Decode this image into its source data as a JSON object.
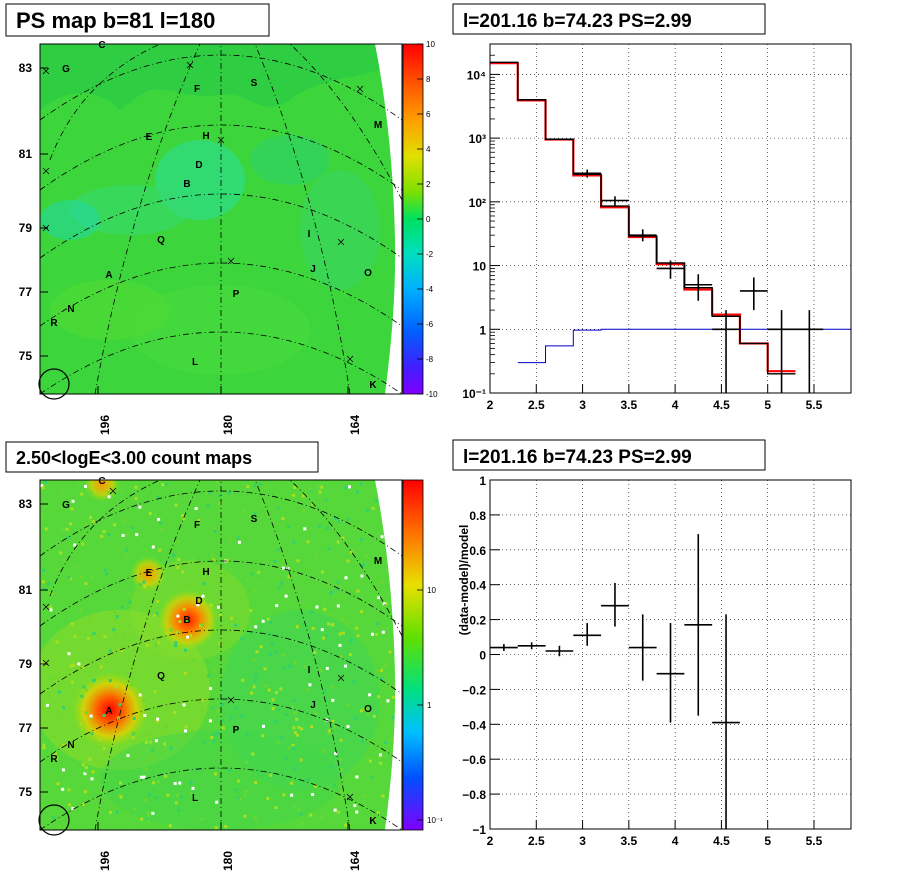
{
  "panels": {
    "ps_map": {
      "title": "PS map b=81 l=180",
      "ytick_labels": [
        "83",
        "81",
        "79",
        "77",
        "75"
      ],
      "xtick_labels": [
        "196",
        "180",
        "164"
      ],
      "colorbar_labels": [
        "10",
        "8",
        "6",
        "4",
        "2",
        "0",
        "-2",
        "-4",
        "-6",
        "-8",
        "-10"
      ],
      "source_labels": [
        "C",
        "G",
        "F",
        "S",
        "M",
        "E",
        "H",
        "D",
        "B",
        "Q",
        "I",
        "A",
        "J",
        "O",
        "P",
        "N",
        "R",
        "L",
        "K"
      ]
    },
    "count_map": {
      "title": "2.50<logE<3.00 count maps",
      "ytick_labels": [
        "83",
        "81",
        "79",
        "77",
        "75"
      ],
      "xtick_labels": [
        "196",
        "180",
        "164"
      ],
      "colorbar_labels": [
        "10",
        "1",
        "10⁻¹"
      ],
      "source_labels": [
        "C",
        "G",
        "F",
        "S",
        "M",
        "E",
        "H",
        "D",
        "B",
        "Q",
        "I",
        "A",
        "J",
        "O",
        "P",
        "N",
        "R",
        "L",
        "K"
      ]
    },
    "spectrum": {
      "title": "l=201.16 b=74.23 PS=2.99"
    },
    "ratio": {
      "title": "l=201.16 b=74.23 PS=2.99"
    }
  },
  "chart_data": [
    {
      "type": "heatmap",
      "title": "PS map b=81 l=180",
      "ylabel_ticks": [
        83,
        81,
        79,
        77,
        75
      ],
      "xlabel_ticks": [
        196,
        180,
        164
      ],
      "zlim": [
        -10,
        10
      ],
      "colorbar_ticks": [
        10,
        8,
        6,
        4,
        2,
        0,
        -2,
        -4,
        -6,
        -8,
        -10
      ],
      "colors": {
        "low": "#8000ff",
        "zero": "#00e080",
        "high": "#ff0000",
        "field": "#40d840"
      }
    },
    {
      "type": "heatmap",
      "title": "2.50<logE<3.00 count maps",
      "ylabel_ticks": [
        83,
        81,
        79,
        77,
        75
      ],
      "xlabel_ticks": [
        196,
        180,
        164
      ],
      "zscale": "log",
      "colorbar_ticks": [
        10,
        1,
        0.1
      ],
      "hot_spots": [
        "C",
        "E",
        "B",
        "A"
      ]
    },
    {
      "type": "line",
      "title": "l=201.16 b=74.23 PS=2.99",
      "ylog": true,
      "xlim": [
        2,
        5.9
      ],
      "ylim": [
        0.1,
        30000
      ],
      "xticks": [
        2,
        2.5,
        3,
        3.5,
        4,
        4.5,
        5,
        5.5
      ],
      "yticks": [
        0.1,
        1,
        10,
        100,
        1000,
        10000
      ],
      "ytick_labels": [
        "10⁻¹",
        "1",
        "10",
        "10²",
        "10³",
        "10⁴"
      ],
      "xtick_labels": [
        "2",
        "2.5",
        "3",
        "3.5",
        "4",
        "4.5",
        "5",
        "5.5"
      ],
      "grid": true,
      "series": [
        {
          "type": "step",
          "color": "#ff0000",
          "bin_edges": [
            2.0,
            2.3,
            2.6,
            2.9,
            3.2,
            3.5,
            3.8,
            4.1,
            4.4,
            4.7,
            5.0,
            5.3
          ],
          "values": [
            15000,
            3900,
            950,
            260,
            82,
            28,
            10.5,
            4.2,
            1.7,
            0.6,
            0.22
          ]
        },
        {
          "type": "step",
          "color": "#000000",
          "bin_edges": [
            2.0,
            2.3,
            2.6,
            2.9,
            3.2,
            3.5,
            3.8,
            4.1,
            4.4,
            4.7,
            5.0,
            5.3
          ],
          "values": [
            15500,
            4000,
            960,
            270,
            86,
            29,
            11,
            4.5,
            1.6,
            0.6,
            0.2
          ]
        },
        {
          "type": "step",
          "color": "#0000cc",
          "bin_edges": [
            2.3,
            2.6,
            2.9,
            3.2,
            5.9
          ],
          "values": [
            0.3,
            0.55,
            0.97,
            1.0
          ]
        },
        {
          "type": "errorbar",
          "color": "#000000",
          "points": [
            {
              "x": 3.05,
              "xerr": 0.15,
              "y": 280,
              "ylo": 240,
              "yhi": 320
            },
            {
              "x": 3.35,
              "xerr": 0.15,
              "y": 105,
              "ylo": 88,
              "yhi": 122
            },
            {
              "x": 3.65,
              "xerr": 0.15,
              "y": 30,
              "ylo": 24,
              "yhi": 37
            },
            {
              "x": 3.95,
              "xerr": 0.15,
              "y": 9,
              "ylo": 6.2,
              "yhi": 12
            },
            {
              "x": 4.25,
              "xerr": 0.15,
              "y": 5,
              "ylo": 2.8,
              "yhi": 7.3
            },
            {
              "x": 4.55,
              "xerr": 0.15,
              "y": 1.0,
              "ylo": 0.08,
              "yhi": 2.0
            },
            {
              "x": 4.85,
              "xerr": 0.15,
              "y": 4,
              "ylo": 2.0,
              "yhi": 6.5
            },
            {
              "x": 5.15,
              "xerr": 0.15,
              "y": 1.0,
              "ylo": 0.08,
              "yhi": 2.0
            },
            {
              "x": 5.45,
              "xerr": 0.15,
              "y": 1.0,
              "ylo": 0.08,
              "yhi": 2.0
            }
          ]
        }
      ]
    },
    {
      "type": "scatter",
      "title": "l=201.16 b=74.23 PS=2.99",
      "ylabel": "(data-model)/model",
      "xlim": [
        2,
        5.9
      ],
      "ylim": [
        -1,
        1
      ],
      "xticks": [
        2,
        2.5,
        3,
        3.5,
        4,
        4.5,
        5,
        5.5
      ],
      "yticks": [
        1,
        0.8,
        0.6,
        0.4,
        0.2,
        0,
        -0.2,
        -0.4,
        -0.6,
        -0.8,
        -1
      ],
      "xtick_labels": [
        "2",
        "2.5",
        "3",
        "3.5",
        "4",
        "4.5",
        "5",
        "5.5"
      ],
      "ytick_labels": [
        "1",
        "0.8",
        "0.6",
        "0.4",
        "0.2",
        "0",
        "−0.2",
        "−0.4",
        "−0.6",
        "−0.8",
        "−1"
      ],
      "grid": true,
      "series": [
        {
          "type": "errorbar",
          "color": "#000000",
          "points": [
            {
              "x": 2.15,
              "xerr": 0.15,
              "y": 0.04,
              "ylo": 0.02,
              "yhi": 0.06
            },
            {
              "x": 2.45,
              "xerr": 0.15,
              "y": 0.05,
              "ylo": 0.03,
              "yhi": 0.07
            },
            {
              "x": 2.75,
              "xerr": 0.15,
              "y": 0.02,
              "ylo": -0.01,
              "yhi": 0.05
            },
            {
              "x": 3.05,
              "xerr": 0.15,
              "y": 0.11,
              "ylo": 0.05,
              "yhi": 0.18
            },
            {
              "x": 3.35,
              "xerr": 0.15,
              "y": 0.28,
              "ylo": 0.16,
              "yhi": 0.41
            },
            {
              "x": 3.65,
              "xerr": 0.15,
              "y": 0.04,
              "ylo": -0.15,
              "yhi": 0.23
            },
            {
              "x": 3.95,
              "xerr": 0.15,
              "y": -0.11,
              "ylo": -0.39,
              "yhi": 0.18
            },
            {
              "x": 4.25,
              "xerr": 0.15,
              "y": 0.17,
              "ylo": -0.35,
              "yhi": 0.69
            },
            {
              "x": 4.55,
              "xerr": 0.15,
              "y": -0.39,
              "ylo": -1.0,
              "yhi": 0.23
            }
          ]
        }
      ]
    }
  ]
}
